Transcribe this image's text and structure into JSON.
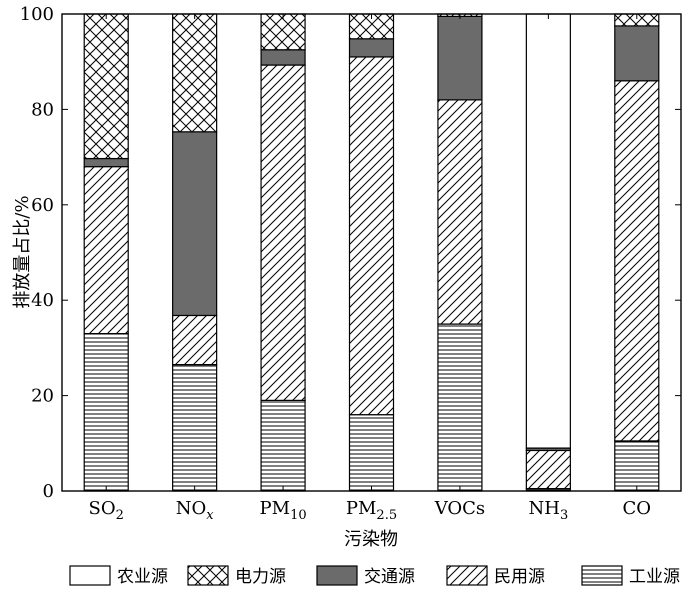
{
  "chart_data": {
    "type": "bar",
    "stacked": true,
    "title": "",
    "xlabel": "污染物",
    "ylabel": "排放量占比/%",
    "ylim": [
      0,
      100
    ],
    "yticks": [
      "0",
      "20",
      "40",
      "60",
      "80",
      "100"
    ],
    "grid": false,
    "legend_position": "bottom",
    "categories": [
      {
        "base": "SO",
        "sub": "2",
        "italic": false
      },
      {
        "base": "NO",
        "sub": "x",
        "italic": true
      },
      {
        "base": "PM",
        "sub": "10",
        "italic": false
      },
      {
        "base": "PM",
        "sub": "2.5",
        "italic": false
      },
      {
        "base": "VOCs",
        "sub": "",
        "italic": false
      },
      {
        "base": "NH",
        "sub": "3",
        "italic": false
      },
      {
        "base": "CO",
        "sub": "",
        "italic": false
      }
    ],
    "series": [
      {
        "name": "工业源",
        "pattern": "horizontal-lines",
        "values": [
          33,
          26.5,
          19,
          16,
          35,
          0.5,
          10.5
        ]
      },
      {
        "name": "民用源",
        "pattern": "diagonal-lines",
        "values": [
          35,
          10.3,
          70.3,
          75,
          47,
          8,
          75.5
        ]
      },
      {
        "name": "交通源",
        "pattern": "solid-dark",
        "values": [
          1.7,
          38.5,
          3.2,
          3.8,
          17.5,
          0.5,
          11.5
        ]
      },
      {
        "name": "电力源",
        "pattern": "crosshatch",
        "values": [
          30.3,
          24.7,
          7.5,
          5.2,
          0.5,
          0,
          2.5
        ]
      },
      {
        "name": "农业源",
        "pattern": "white",
        "values": [
          0,
          0,
          0,
          0,
          0,
          91,
          0
        ]
      }
    ],
    "legend_order": [
      "农业源",
      "电力源",
      "交通源",
      "民用源",
      "工业源"
    ],
    "colors": {
      "solid-dark": "#6b6b6b",
      "stroke": "#000000",
      "background": "#ffffff"
    }
  }
}
